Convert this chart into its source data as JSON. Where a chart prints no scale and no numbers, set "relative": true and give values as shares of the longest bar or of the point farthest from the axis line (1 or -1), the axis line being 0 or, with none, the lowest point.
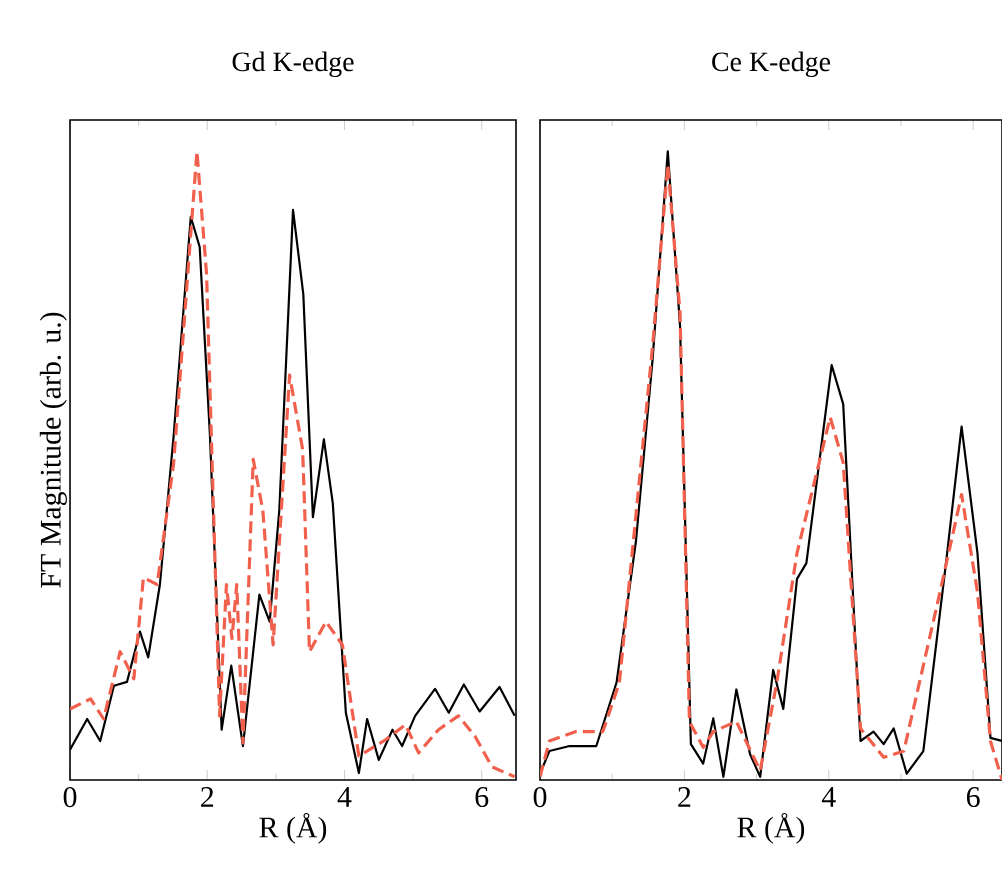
{
  "chart_data": [
    {
      "type": "line",
      "title": "Gd K-edge",
      "xlabel": "R (Å)",
      "ylabel": "FT Magnitude (arb. u.)",
      "relative": true,
      "xlim": [
        0,
        6.5
      ],
      "xticks": [
        0,
        2,
        4,
        6
      ],
      "tick_labels": "x",
      "series": [
        {
          "color": "#000000",
          "line_style": "solid",
          "x": [
            0,
            0.25,
            0.44,
            0.64,
            0.83,
            1.02,
            1.14,
            1.31,
            1.51,
            1.76,
            1.89,
            2.04,
            2.21,
            2.35,
            2.52,
            2.76,
            2.91,
            3.05,
            3.25,
            3.4,
            3.54,
            3.7,
            3.83,
            4.02,
            4.21,
            4.33,
            4.5,
            4.7,
            4.84,
            5.03,
            5.32,
            5.52,
            5.74,
            5.97,
            6.26,
            6.48
          ],
          "values": [
            0.048,
            0.097,
            0.062,
            0.15,
            0.156,
            0.236,
            0.195,
            0.311,
            0.547,
            0.896,
            0.848,
            0.547,
            0.08,
            0.182,
            0.054,
            0.295,
            0.252,
            0.429,
            0.907,
            0.773,
            0.418,
            0.542,
            0.44,
            0.107,
            0.011,
            0.097,
            0.032,
            0.08,
            0.054,
            0.102,
            0.145,
            0.107,
            0.152,
            0.109,
            0.148,
            0.102
          ]
        },
        {
          "color": "#f0604d",
          "line_style": "dashed",
          "x": [
            0,
            0.3,
            0.49,
            0.73,
            0.93,
            1.07,
            1.27,
            1.51,
            1.85,
            1.99,
            2.18,
            2.28,
            2.36,
            2.43,
            2.52,
            2.67,
            2.81,
            2.96,
            3.2,
            3.39,
            3.49,
            3.73,
            3.97,
            4.21,
            4.6,
            4.89,
            5.08,
            5.37,
            5.66,
            5.9,
            6.15,
            6.48
          ],
          "values": [
            0.113,
            0.129,
            0.097,
            0.204,
            0.161,
            0.322,
            0.311,
            0.504,
            1.0,
            0.805,
            0.102,
            0.311,
            0.225,
            0.311,
            0.059,
            0.51,
            0.429,
            0.215,
            0.644,
            0.526,
            0.204,
            0.252,
            0.215,
            0.038,
            0.064,
            0.088,
            0.043,
            0.08,
            0.102,
            0.07,
            0.021,
            0.005
          ]
        }
      ]
    },
    {
      "type": "line",
      "title": "Ce K-edge",
      "xlabel": "R (Å)",
      "relative": true,
      "xlim": [
        0,
        6.4
      ],
      "xticks": [
        0,
        2,
        4,
        6
      ],
      "tick_labels": "x",
      "series": [
        {
          "color": "#000000",
          "line_style": "solid",
          "x": [
            0,
            0.13,
            0.41,
            0.78,
            1.06,
            1.33,
            1.56,
            1.77,
            1.94,
            2.09,
            2.26,
            2.4,
            2.54,
            2.72,
            2.91,
            3.05,
            3.23,
            3.37,
            3.56,
            3.69,
            4.04,
            4.2,
            4.44,
            4.62,
            4.76,
            4.9,
            5.08,
            5.31,
            5.64,
            5.84,
            6.06,
            6.24,
            6.4
          ],
          "values": [
            0.01,
            0.046,
            0.054,
            0.054,
            0.155,
            0.381,
            0.67,
            1.0,
            0.722,
            0.057,
            0.026,
            0.098,
            0.005,
            0.144,
            0.041,
            0.005,
            0.175,
            0.113,
            0.32,
            0.345,
            0.66,
            0.598,
            0.062,
            0.077,
            0.057,
            0.082,
            0.01,
            0.046,
            0.361,
            0.562,
            0.361,
            0.067,
            0.062
          ]
        },
        {
          "color": "#f0604d",
          "line_style": "dashed",
          "x": [
            0,
            0.13,
            0.5,
            0.87,
            1.1,
            1.56,
            1.77,
            1.94,
            2.07,
            2.26,
            2.4,
            2.72,
            3.05,
            3.28,
            3.56,
            4.02,
            4.2,
            4.44,
            4.76,
            5.04,
            5.5,
            5.84,
            6.06,
            6.24,
            6.4
          ],
          "values": [
            0.005,
            0.062,
            0.077,
            0.077,
            0.155,
            0.691,
            0.979,
            0.742,
            0.093,
            0.052,
            0.077,
            0.093,
            0.015,
            0.155,
            0.361,
            0.577,
            0.505,
            0.082,
            0.036,
            0.046,
            0.278,
            0.454,
            0.299,
            0.062,
            0.0
          ]
        }
      ]
    }
  ]
}
